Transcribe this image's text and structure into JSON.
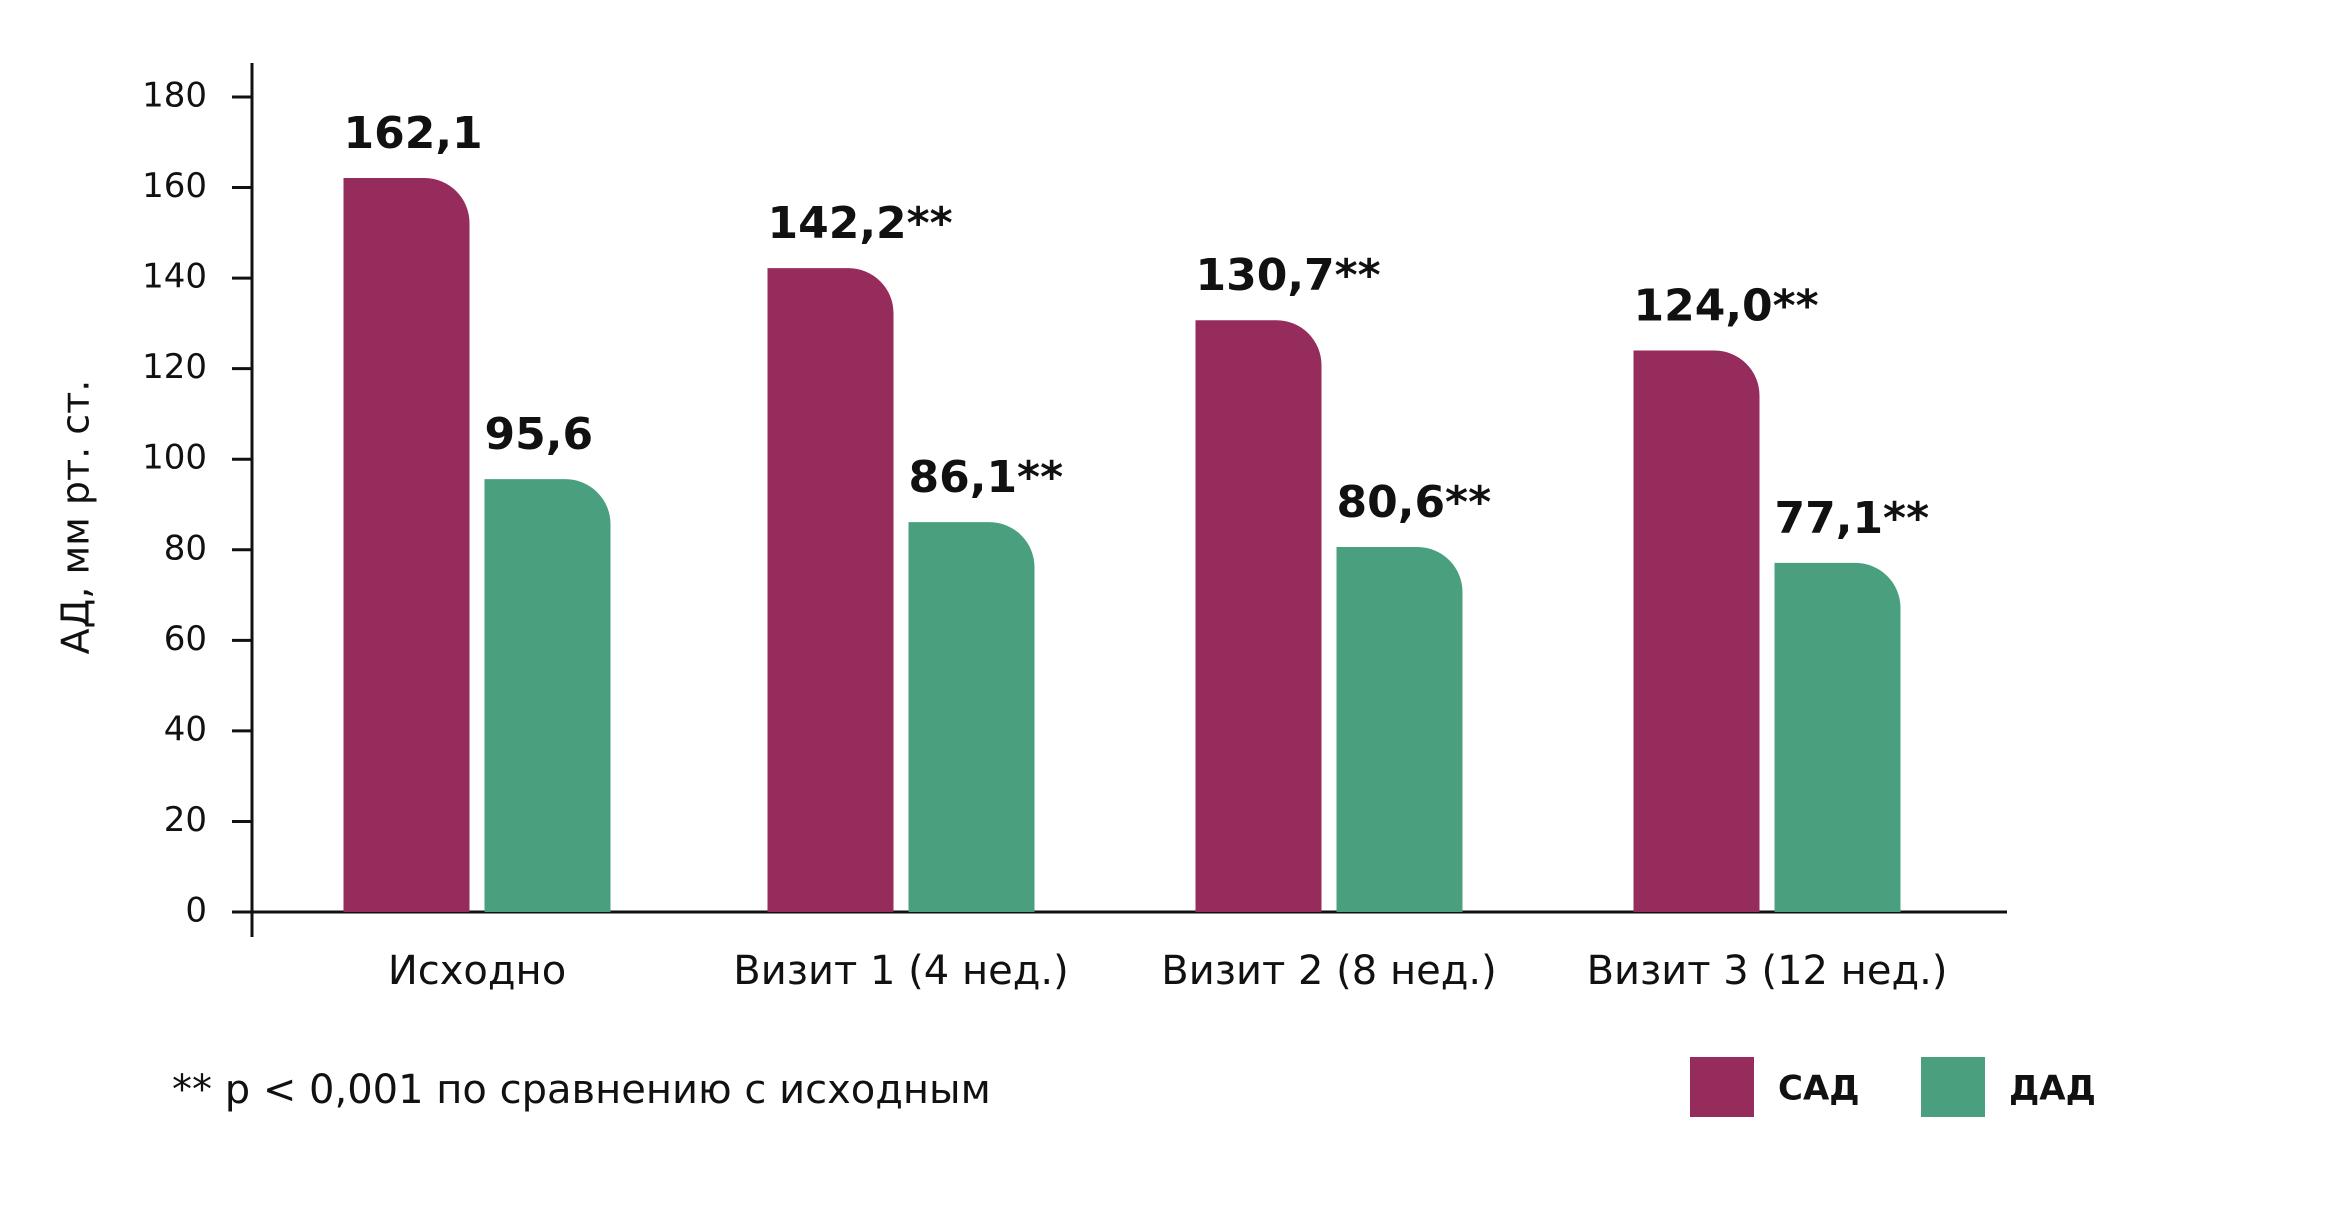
{
  "chart_data": {
    "type": "bar",
    "ylabel": "АД, мм рт. ст.",
    "categories": [
      "Исходно",
      "Визит 1 (4 нед.)",
      "Визит 2 (8 нед.)",
      "Визит 3 (12 нед.)"
    ],
    "series": [
      {
        "name": "САД",
        "color": "#952c5b",
        "values": [
          162.1,
          142.2,
          130.7,
          124.0
        ],
        "value_labels": [
          "162,1",
          "142,2**",
          "130,7**",
          "124,0**"
        ]
      },
      {
        "name": "ДАД",
        "color": "#4aa07e",
        "values": [
          95.6,
          86.1,
          80.6,
          77.1
        ],
        "value_labels": [
          "95,6",
          "86,1**",
          "80,6**",
          "77,1**"
        ]
      }
    ],
    "ylim": [
      0,
      180
    ],
    "yticks": [
      0,
      20,
      40,
      60,
      80,
      100,
      120,
      140,
      160,
      180
    ],
    "note": "** p < 0,001 по сравнению с исходным",
    "legend": "bottom-right"
  }
}
